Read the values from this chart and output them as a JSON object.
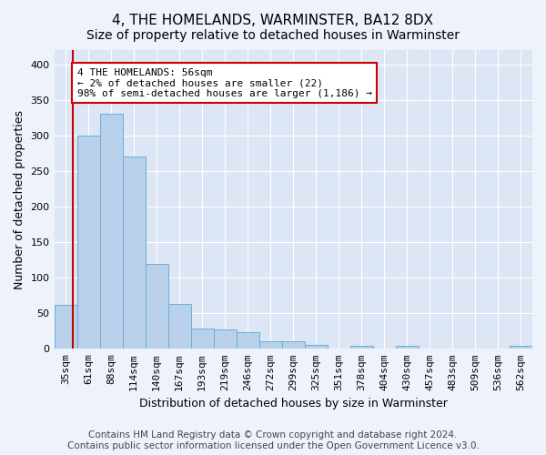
{
  "title": "4, THE HOMELANDS, WARMINSTER, BA12 8DX",
  "subtitle": "Size of property relative to detached houses in Warminster",
  "xlabel": "Distribution of detached houses by size in Warminster",
  "ylabel": "Number of detached properties",
  "categories": [
    "35sqm",
    "61sqm",
    "88sqm",
    "114sqm",
    "140sqm",
    "167sqm",
    "193sqm",
    "219sqm",
    "246sqm",
    "272sqm",
    "299sqm",
    "325sqm",
    "351sqm",
    "378sqm",
    "404sqm",
    "430sqm",
    "457sqm",
    "483sqm",
    "509sqm",
    "536sqm",
    "562sqm"
  ],
  "values": [
    62,
    300,
    330,
    270,
    120,
    63,
    28,
    27,
    24,
    11,
    11,
    5,
    0,
    4,
    0,
    4,
    0,
    0,
    0,
    0,
    4
  ],
  "bar_color": "#b8d0ea",
  "bar_edge_color": "#6baed6",
  "ylim": [
    0,
    420
  ],
  "yticks": [
    0,
    50,
    100,
    150,
    200,
    250,
    300,
    350,
    400
  ],
  "annotation_text": "4 THE HOMELANDS: 56sqm\n← 2% of detached houses are smaller (22)\n98% of semi-detached houses are larger (1,186) →",
  "annotation_box_color": "#ffffff",
  "annotation_border_color": "#cc0000",
  "footer_line1": "Contains HM Land Registry data © Crown copyright and database right 2024.",
  "footer_line2": "Contains public sector information licensed under the Open Government Licence v3.0.",
  "fig_background_color": "#eef2fa",
  "ax_background_color": "#dce6f5",
  "grid_color": "#ffffff",
  "title_fontsize": 11,
  "subtitle_fontsize": 10,
  "axis_label_fontsize": 9,
  "tick_fontsize": 8,
  "footer_fontsize": 7.5
}
